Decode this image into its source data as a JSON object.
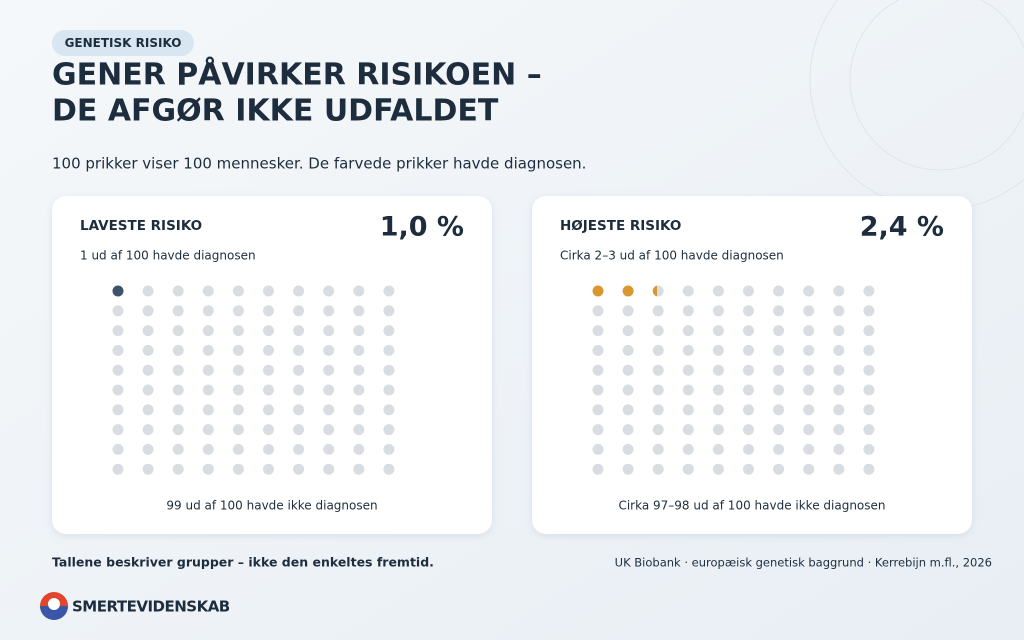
{
  "header": {
    "tag": "GENETISK RISIKO",
    "title_line1": "GENER PÅVIRKER RISIKOEN –",
    "title_line2": "DE AFGØR IKKE UDFALDET",
    "subtitle": "100 prikker viser 100 mennesker. De farvede prikker havde diagnosen."
  },
  "population": 100,
  "panels": [
    {
      "label": "LAVESTE RISIKO",
      "value": 1.0,
      "value_label": "1,0 %",
      "note_top": "1 ud af 100 havde diagnosen",
      "note_bottom": "99 ud af 100 havde ikke diagnosen",
      "color": "#3e5369"
    },
    {
      "label": "HØJESTE RISIKO",
      "value": 2.4,
      "value_label": "2,4 %",
      "note_top": "Cirka 2–3 ud af 100 havde diagnosen",
      "note_bottom": "Cirka 97–98 ud af 100 havde ikke diagnosen",
      "color": "#d9972f"
    }
  ],
  "footer": {
    "note": "Tallene beskriver grupper – ikke den enkeltes fremtid.",
    "source": "UK Biobank · europæisk genetisk baggrund · Kerrebijn m.fl., 2026"
  },
  "logo": {
    "text": "SMERTEVIDENSKAB"
  }
}
